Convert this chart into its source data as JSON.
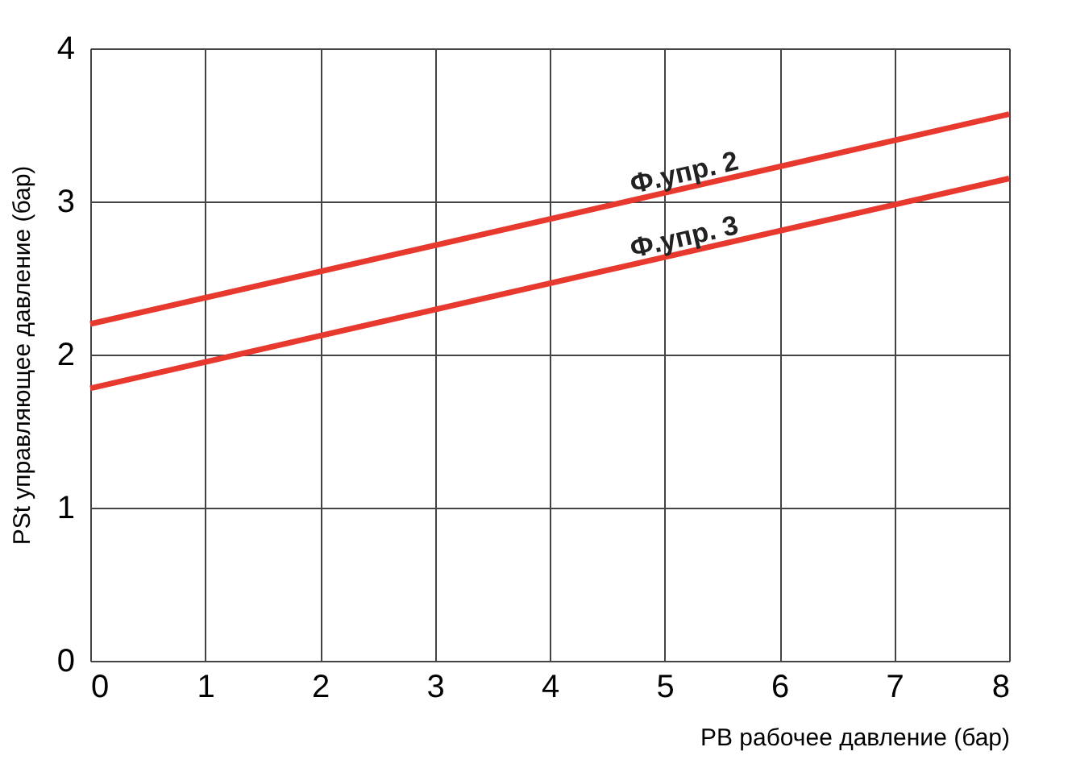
{
  "chart_data": {
    "type": "line",
    "xlabel": "PB рабочее давление (бар)",
    "ylabel": "PSt управляющее давление (бар)",
    "x": [
      0,
      8
    ],
    "series": [
      {
        "name": "Ф.упр. 2",
        "color": "#e8392f",
        "values": [
          2.2,
          3.57
        ]
      },
      {
        "name": "Ф.упр. 3",
        "color": "#e8392f",
        "values": [
          1.78,
          3.15
        ]
      }
    ],
    "xlim": [
      0,
      8
    ],
    "ylim": [
      0,
      4
    ],
    "xticks": [
      0,
      1,
      2,
      3,
      4,
      5,
      6,
      7,
      8
    ],
    "yticks": [
      0,
      1,
      2,
      3,
      4
    ],
    "grid": true,
    "legend": false,
    "marker": "none",
    "line_style": "solid"
  }
}
